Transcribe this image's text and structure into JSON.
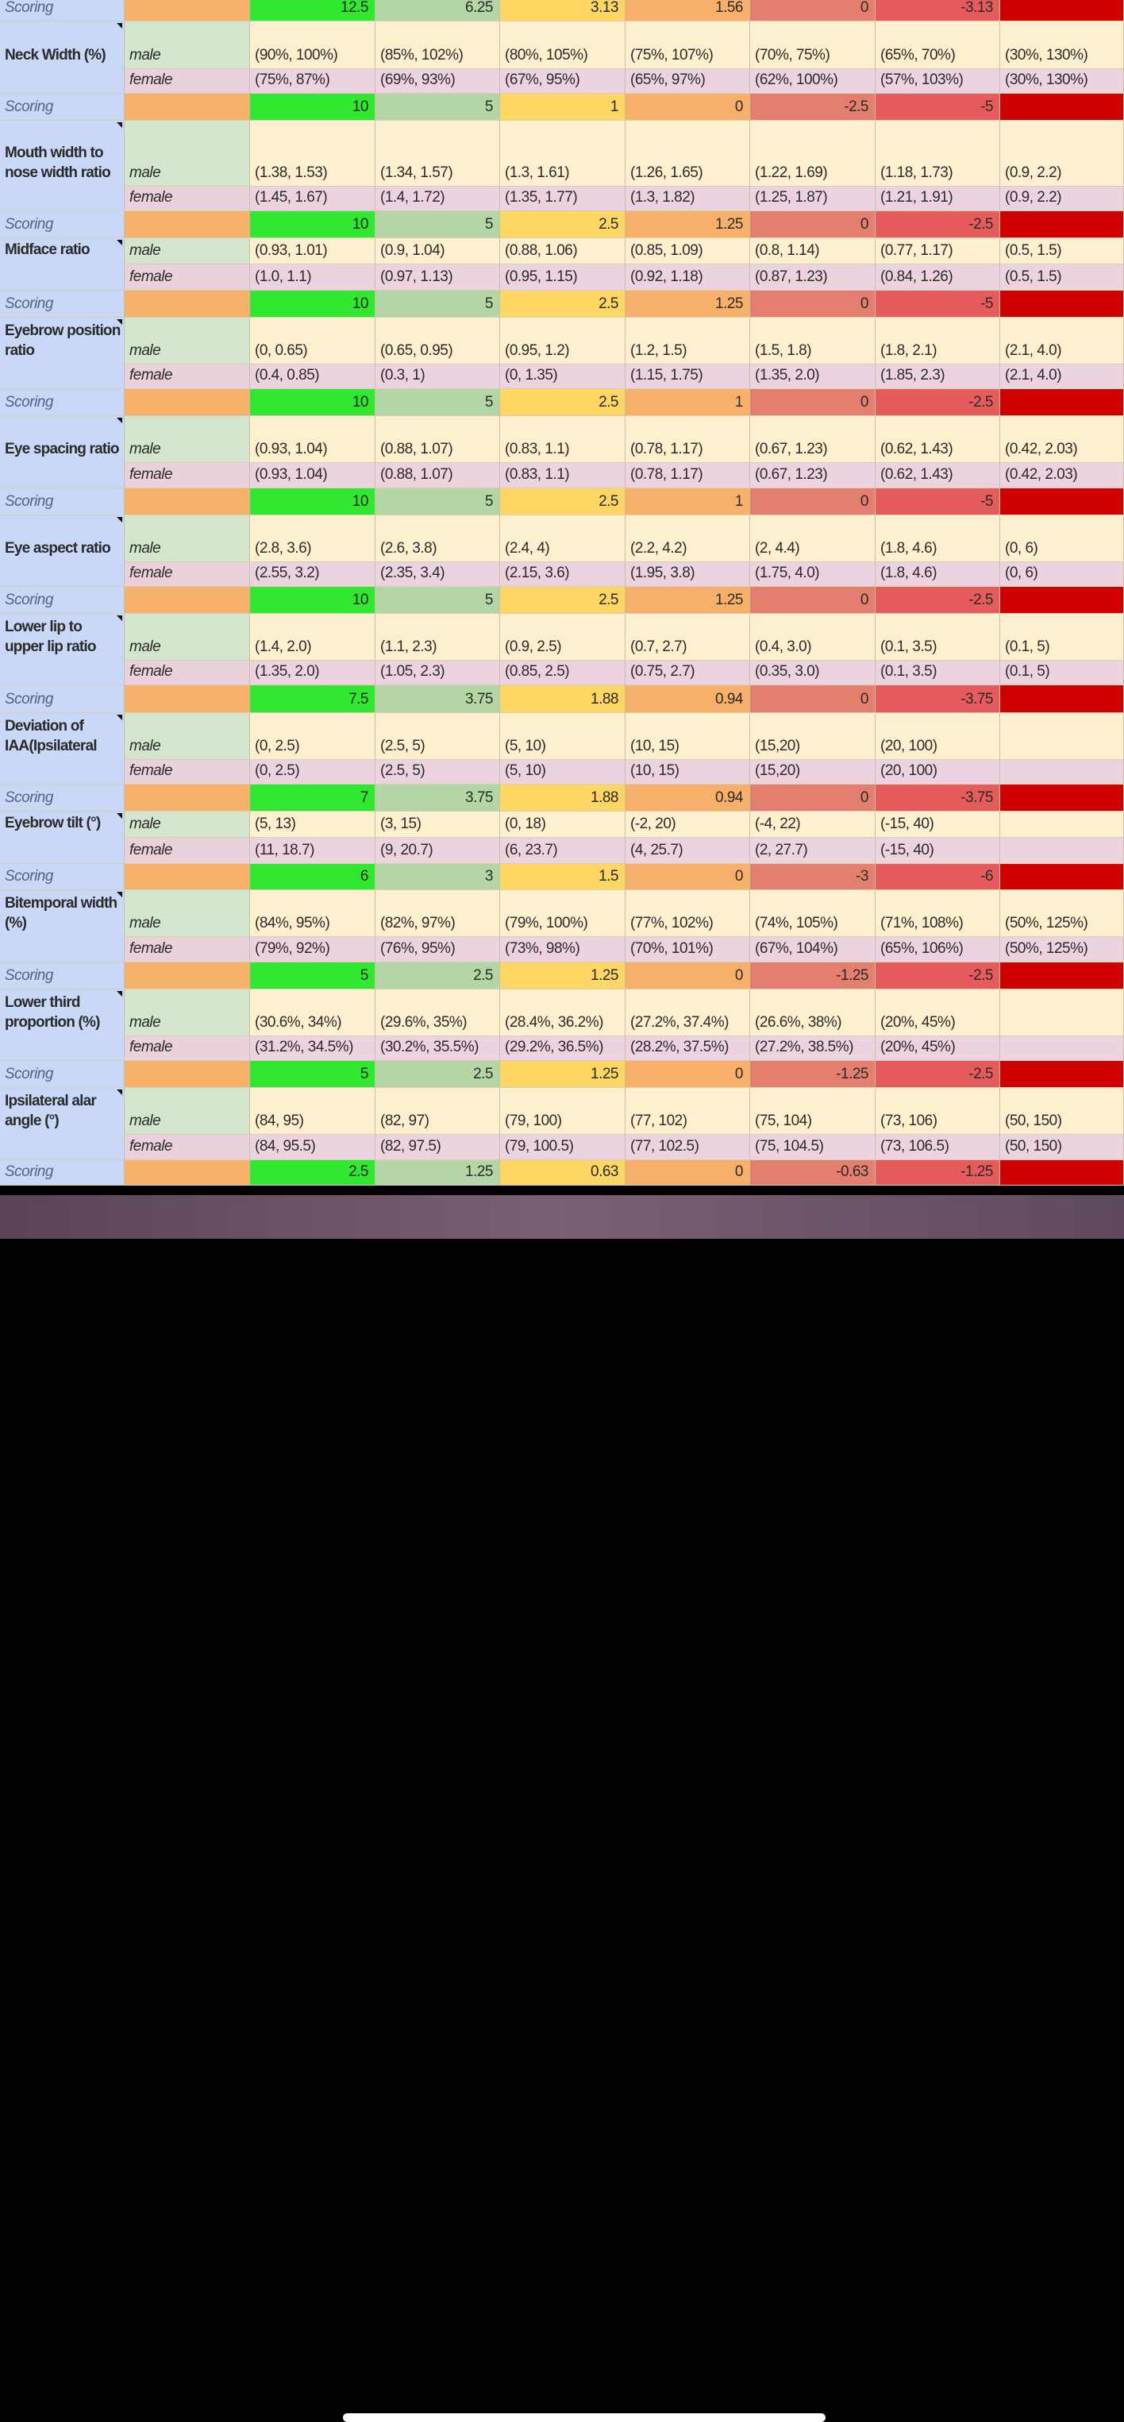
{
  "top_scoring": {
    "label": "Scoring",
    "cells": [
      12.5,
      6.25,
      3.13,
      1.56,
      0,
      -3.13
    ]
  },
  "sections": [
    {
      "metric": "Neck Width (%)",
      "male": {
        "label": "male",
        "cells": [
          "(90%, 100%)",
          "(85%, 102%)",
          "(80%, 105%)",
          "(75%, 107%)",
          "(70%, 75%)",
          "(65%, 70%)",
          "(30%, 130%)"
        ]
      },
      "female": {
        "label": "female",
        "cells": [
          "(75%, 87%)",
          "(69%, 93%)",
          "(67%, 95%)",
          "(65%, 97%)",
          "(62%, 100%)",
          "(57%, 103%)",
          "(30%, 130%)"
        ]
      },
      "scoring": {
        "label": "Scoring",
        "cells": [
          10,
          5,
          1,
          0,
          -2.5,
          -5
        ]
      }
    },
    {
      "metric": "Mouth width to nose width ratio",
      "male": {
        "label": "male",
        "cells": [
          "(1.38, 1.53)",
          "(1.34, 1.57)",
          "(1.3, 1.61)",
          "(1.26, 1.65)",
          "(1.22, 1.69)",
          "(1.18, 1.73)",
          "(0.9, 2.2)"
        ]
      },
      "female": {
        "label": "female",
        "cells": [
          "(1.45, 1.67)",
          "(1.4, 1.72)",
          "(1.35, 1.77)",
          "(1.3, 1.82)",
          "(1.25, 1.87)",
          "(1.21, 1.91)",
          "(0.9, 2.2)"
        ]
      },
      "scoring": {
        "label": "Scoring",
        "cells": [
          10,
          5,
          2.5,
          1.25,
          0,
          -2.5
        ]
      }
    },
    {
      "metric": "Midface ratio",
      "male": {
        "label": "male",
        "cells": [
          "(0.93, 1.01)",
          "(0.9, 1.04)",
          "(0.88, 1.06)",
          "(0.85, 1.09)",
          "(0.8, 1.14)",
          "(0.77, 1.17)",
          "(0.5, 1.5)"
        ]
      },
      "female": {
        "label": "female",
        "cells": [
          "(1.0, 1.1)",
          "(0.97, 1.13)",
          "(0.95, 1.15)",
          "(0.92, 1.18)",
          "(0.87, 1.23)",
          "(0.84, 1.26)",
          "(0.5, 1.5)"
        ]
      },
      "scoring": {
        "label": "Scoring",
        "cells": [
          10,
          5,
          2.5,
          1.25,
          0,
          -5
        ]
      }
    },
    {
      "metric": "Eyebrow position ratio",
      "male": {
        "label": "male",
        "cells": [
          "(0, 0.65)",
          "(0.65, 0.95)",
          "(0.95, 1.2)",
          "(1.2, 1.5)",
          "(1.5, 1.8)",
          "(1.8, 2.1)",
          "(2.1, 4.0)"
        ]
      },
      "female": {
        "label": "female",
        "cells": [
          "(0.4, 0.85)",
          "(0.3, 1)",
          "(0, 1.35)",
          "(1.15, 1.75)",
          "(1.35, 2.0)",
          "(1.85, 2.3)",
          "(2.1, 4.0)"
        ]
      },
      "scoring": {
        "label": "Scoring",
        "cells": [
          10,
          5,
          2.5,
          1,
          0,
          -2.5
        ]
      }
    },
    {
      "metric": "Eye spacing ratio",
      "male": {
        "label": "male",
        "cells": [
          "(0.93, 1.04)",
          "(0.88, 1.07)",
          "(0.83, 1.1)",
          "(0.78, 1.17)",
          "(0.67, 1.23)",
          "(0.62, 1.43)",
          "(0.42, 2.03)"
        ]
      },
      "female": {
        "label": "female",
        "cells": [
          "(0.93, 1.04)",
          "(0.88, 1.07)",
          "(0.83, 1.1)",
          "(0.78, 1.17)",
          "(0.67, 1.23)",
          "(0.62, 1.43)",
          "(0.42, 2.03)"
        ]
      },
      "scoring": {
        "label": "Scoring",
        "cells": [
          10,
          5,
          2.5,
          1,
          0,
          -5
        ]
      }
    },
    {
      "metric": "Eye aspect ratio",
      "male": {
        "label": "male",
        "cells": [
          "(2.8, 3.6)",
          "(2.6, 3.8)",
          "(2.4, 4)",
          "(2.2, 4.2)",
          "(2, 4.4)",
          "(1.8, 4.6)",
          "(0, 6)"
        ]
      },
      "female": {
        "label": "female",
        "cells": [
          "(2.55, 3.2)",
          "(2.35, 3.4)",
          "(2.15, 3.6)",
          "(1.95, 3.8)",
          "(1.75, 4.0)",
          "(1.8, 4.6)",
          "(0, 6)"
        ]
      },
      "scoring": {
        "label": "Scoring",
        "cells": [
          10,
          5,
          2.5,
          1.25,
          0,
          -2.5
        ]
      }
    },
    {
      "metric": "Lower lip to upper lip ratio",
      "male": {
        "label": "male",
        "cells": [
          "(1.4, 2.0)",
          "(1.1, 2.3)",
          "(0.9, 2.5)",
          "(0.7, 2.7)",
          "(0.4, 3.0)",
          "(0.1, 3.5)",
          "(0.1, 5)"
        ]
      },
      "female": {
        "label": "female",
        "cells": [
          "(1.35, 2.0)",
          "(1.05, 2.3)",
          "(0.85, 2.5)",
          "(0.75, 2.7)",
          "(0.35, 3.0)",
          "(0.1, 3.5)",
          "(0.1, 5)"
        ]
      },
      "scoring": {
        "label": "Scoring",
        "cells": [
          7.5,
          3.75,
          1.88,
          0.94,
          0,
          -3.75
        ]
      }
    },
    {
      "metric": "Deviation of IAA(Ipsilateral",
      "male": {
        "label": "male",
        "cells": [
          "(0, 2.5)",
          "(2.5, 5)",
          "(5, 10)",
          "(10, 15)",
          "(15,20)",
          "(20, 100)"
        ]
      },
      "female": {
        "label": "female",
        "cells": [
          "(0, 2.5)",
          "(2.5, 5)",
          "(5, 10)",
          "(10, 15)",
          "(15,20)",
          "(20, 100)"
        ]
      },
      "scoring": {
        "label": "Scoring",
        "cells": [
          7,
          3.75,
          1.88,
          0.94,
          0,
          -3.75
        ]
      }
    },
    {
      "metric": "Eyebrow tilt (°)",
      "male": {
        "label": "male",
        "cells": [
          "(5, 13)",
          "(3, 15)",
          "(0, 18)",
          "(-2, 20)",
          "(-4, 22)",
          "(-15, 40)"
        ]
      },
      "female": {
        "label": "female",
        "cells": [
          "(11, 18.7)",
          "(9, 20.7)",
          "(6, 23.7)",
          "(4, 25.7)",
          "(2, 27.7)",
          "(-15, 40)"
        ]
      },
      "scoring": {
        "label": "Scoring",
        "cells": [
          6,
          3,
          1.5,
          0,
          -3,
          -6
        ]
      }
    },
    {
      "metric": "Bitemporal width (%)",
      "male": {
        "label": "male",
        "cells": [
          "(84%, 95%)",
          "(82%, 97%)",
          "(79%, 100%)",
          "(77%, 102%)",
          "(74%, 105%)",
          "(71%, 108%)",
          "(50%, 125%)"
        ]
      },
      "female": {
        "label": "female",
        "cells": [
          "(79%, 92%)",
          "(76%, 95%)",
          "(73%, 98%)",
          "(70%, 101%)",
          "(67%, 104%)",
          "(65%, 106%)",
          "(50%, 125%)"
        ]
      },
      "scoring": {
        "label": "Scoring",
        "cells": [
          5,
          2.5,
          1.25,
          0,
          -1.25,
          -2.5
        ]
      }
    },
    {
      "metric": "Lower third proportion (%)",
      "male": {
        "label": "male",
        "cells": [
          "(30.6%, 34%)",
          "(29.6%, 35%)",
          "(28.4%, 36.2%)",
          "(27.2%, 37.4%)",
          "(26.6%, 38%)",
          "(20%, 45%)"
        ]
      },
      "female": {
        "label": "female",
        "cells": [
          "(31.2%, 34.5%)",
          "(30.2%, 35.5%)",
          "(29.2%, 36.5%)",
          "(28.2%, 37.5%)",
          "(27.2%, 38.5%)",
          "(20%, 45%)"
        ]
      },
      "scoring": {
        "label": "Scoring",
        "cells": [
          5,
          2.5,
          1.25,
          0,
          -1.25,
          -2.5
        ]
      }
    },
    {
      "metric": "Ipsilateral alar angle (°)",
      "male": {
        "label": "male",
        "cells": [
          "(84, 95)",
          "(82, 97)",
          "(79, 100)",
          "(77, 102)",
          "(75, 104)",
          "(73, 106)",
          "(50, 150)"
        ]
      },
      "female": {
        "label": "female",
        "cells": [
          "(84, 95.5)",
          "(82, 97.5)",
          "(79, 100.5)",
          "(77, 102.5)",
          "(75, 104.5)",
          "(73, 106.5)",
          "(50, 150)"
        ]
      },
      "scoring": {
        "label": "Scoring",
        "cells": [
          2.5,
          1.25,
          0.63,
          0,
          -0.63,
          -1.25
        ]
      }
    }
  ]
}
